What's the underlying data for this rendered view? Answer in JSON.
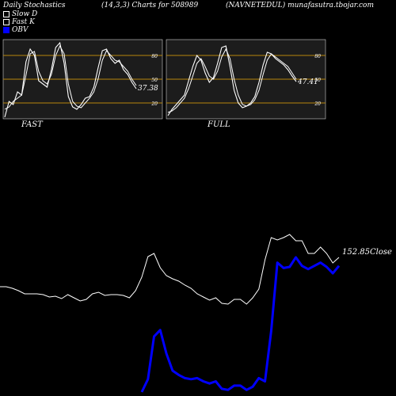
{
  "header": {
    "left": "Daily Stochastics",
    "center": "(14,3,3) Charts for 508989",
    "right": "(NAVNETEDUL) munafasutra.tbojar.com"
  },
  "legend": [
    {
      "label": "Slow  D",
      "color": "#000000"
    },
    {
      "label": "Fast K",
      "color": "#000000"
    },
    {
      "label": "OBV",
      "color": "#0000ff"
    }
  ],
  "colors": {
    "background": "#000000",
    "panel": "#1c1c1c",
    "level_line": "#b8860b",
    "price_line": "#ffffff",
    "obv_line": "#0000ff"
  },
  "chart_data": [
    {
      "type": "line",
      "name": "FAST",
      "label": "FAST",
      "ylim": [
        0,
        100
      ],
      "levels": [
        20,
        50,
        80
      ],
      "level_labels": [
        "20",
        "50",
        "80"
      ],
      "last_value_label": "37.38",
      "series": [
        {
          "name": "K",
          "values": [
            2,
            22,
            18,
            34,
            30,
            72,
            88,
            80,
            48,
            44,
            40,
            62,
            90,
            96,
            70,
            28,
            15,
            12,
            18,
            26,
            28,
            40,
            64,
            86,
            88,
            76,
            70,
            74,
            62,
            56,
            46,
            38
          ]
        },
        {
          "name": "D",
          "values": [
            12,
            15,
            22,
            26,
            30,
            55,
            82,
            85,
            60,
            48,
            44,
            56,
            80,
            92,
            82,
            44,
            22,
            16,
            14,
            20,
            26,
            34,
            50,
            74,
            86,
            80,
            74,
            72,
            66,
            60,
            50,
            42
          ]
        }
      ]
    },
    {
      "type": "line",
      "name": "FULL",
      "label": "FULL",
      "ylim": [
        0,
        100
      ],
      "levels": [
        20,
        50,
        80
      ],
      "level_labels": [
        "20",
        "50",
        "80"
      ],
      "last_value_label": "47.41",
      "series": [
        {
          "name": "K",
          "values": [
            4,
            12,
            18,
            24,
            30,
            48,
            66,
            80,
            74,
            58,
            46,
            52,
            70,
            90,
            92,
            66,
            36,
            20,
            14,
            16,
            20,
            28,
            46,
            68,
            84,
            82,
            76,
            72,
            68,
            62,
            54,
            47
          ]
        },
        {
          "name": "D",
          "values": [
            8,
            10,
            14,
            20,
            26,
            38,
            54,
            70,
            76,
            66,
            54,
            50,
            60,
            78,
            88,
            76,
            50,
            30,
            18,
            16,
            18,
            24,
            36,
            56,
            74,
            82,
            78,
            74,
            70,
            66,
            58,
            50
          ]
        }
      ]
    },
    {
      "type": "line",
      "name": "Price and OBV",
      "last_value_label": "152.85",
      "close_label": "Close",
      "series": [
        {
          "name": "Close",
          "values": [
            18,
            18,
            16,
            13,
            9,
            9,
            9,
            8,
            5,
            6,
            3,
            8,
            4,
            0,
            2,
            9,
            11,
            7,
            8,
            8,
            7,
            4,
            13,
            30,
            56,
            60,
            42,
            32,
            28,
            25,
            20,
            16,
            9,
            5,
            1,
            4,
            -3,
            -4,
            2,
            2,
            -4,
            4,
            15,
            52,
            80,
            77,
            80,
            84,
            76,
            76,
            60,
            60,
            68,
            60,
            48,
            55
          ]
        },
        {
          "name": "OBV",
          "values": [
            null,
            null,
            null,
            null,
            null,
            null,
            null,
            null,
            null,
            null,
            null,
            null,
            null,
            null,
            null,
            null,
            null,
            null,
            null,
            null,
            null,
            null,
            null,
            0,
            12,
            52,
            58,
            36,
            20,
            16,
            13,
            12,
            13,
            10,
            8,
            10,
            3,
            2,
            6,
            6,
            2,
            5,
            13,
            10,
            57,
            121,
            116,
            117,
            126,
            118,
            115,
            118,
            121,
            117,
            111,
            118
          ]
        }
      ]
    }
  ]
}
